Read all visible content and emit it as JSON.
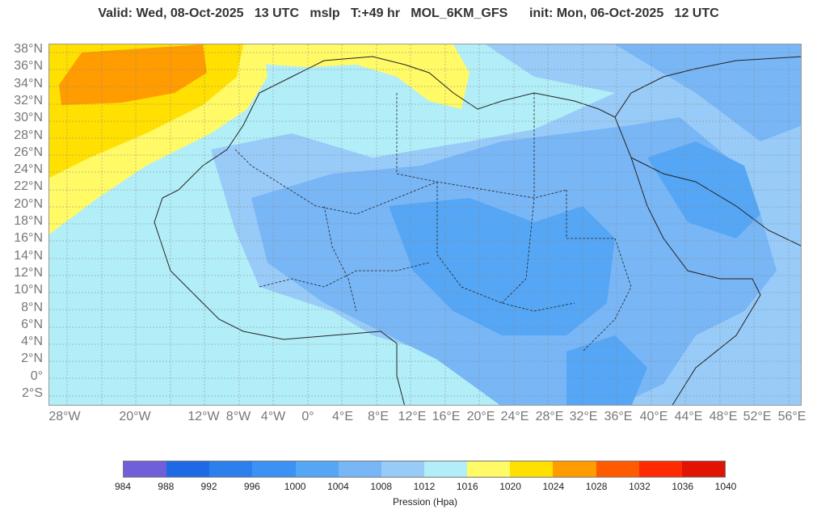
{
  "header": {
    "title": "Valid: Wed, 08-Oct-2025   13 UTC   mslp   T:+49 hr   MOL_6KM_GFS      init: Mon, 06-Oct-2025   12 UTC"
  },
  "map": {
    "lat_labels": [
      "38°N",
      "36°N",
      "34°N",
      "32°N",
      "30°N",
      "28°N",
      "26°N",
      "24°N",
      "22°N",
      "20°N",
      "18°N",
      "16°N",
      "14°N",
      "12°N",
      "10°N",
      "8°N",
      "6°N",
      "4°N",
      "2°N",
      "0°",
      "2°S"
    ],
    "lon_labels": [
      "28°W",
      "20°W",
      "12°W",
      "8°W",
      "4°W",
      "0°",
      "4°E",
      "8°E",
      "12°E",
      "16°E",
      "20°E",
      "24°E",
      "28°E",
      "32°E",
      "36°E",
      "40°E",
      "44°E",
      "48°E",
      "52°E",
      "56°E"
    ],
    "grid": true
  },
  "colorbar": {
    "ticks": [
      "984",
      "988",
      "992",
      "996",
      "1000",
      "1004",
      "1008",
      "1012",
      "1016",
      "1020",
      "1024",
      "1028",
      "1032",
      "1036",
      "1040"
    ],
    "colors": [
      "#6f5fd8",
      "#1e6ae6",
      "#2b80ee",
      "#3b92f2",
      "#55a6f5",
      "#78b6f6",
      "#98cbf8",
      "#b2eef8",
      "#fffa66",
      "#ffe000",
      "#ff9c00",
      "#ff5a00",
      "#ff2a00",
      "#e01400"
    ],
    "label": "Pression (Hpa)"
  }
}
